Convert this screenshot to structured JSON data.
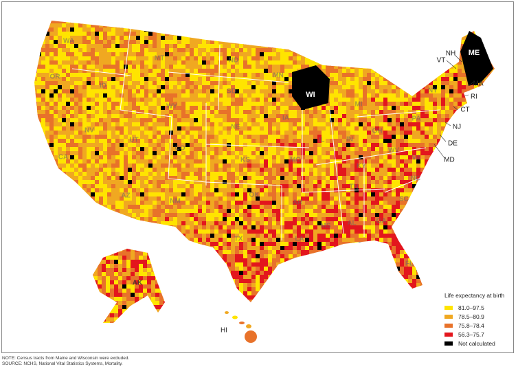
{
  "legend": {
    "title": "Life expectancy at birth",
    "items": [
      {
        "label": "81.0–97.5",
        "color": "#ffe400"
      },
      {
        "label": "78.5–80.9",
        "color": "#f0a821"
      },
      {
        "label": "75.8–78.4",
        "color": "#e8722a"
      },
      {
        "label": "56.3–75.7",
        "color": "#e3161d"
      },
      {
        "label": "Not calculated",
        "color": "#000000"
      }
    ]
  },
  "state_labels": {
    "WA": "WA",
    "OR": "OR",
    "ID": "ID",
    "MT": "MT",
    "ND": "ND",
    "MN": "MN",
    "SD": "SD",
    "WY": "WY",
    "NE": "NE",
    "NV": "NV",
    "UT": "UT",
    "CO": "CO",
    "CA": "CA",
    "AZ": "AZ",
    "NM": "NM",
    "KS": "KS",
    "OK": "OK",
    "TX": "TX",
    "IA": "IA",
    "MO": "MO",
    "IL": "IL",
    "IN": "IN",
    "OH": "OH",
    "MI": "MI",
    "KY": "KY",
    "TN": "TN",
    "AR": "AR",
    "LA": "LA",
    "MS": "MS",
    "AL": "AL",
    "GA": "GA",
    "SC": "SC",
    "NC": "NC",
    "VA": "VA",
    "WV": "WV",
    "PA": "PA",
    "NY": "NY",
    "FL": "FL",
    "WI": "WI",
    "ME": "ME",
    "NH": "NH",
    "VT": "VT",
    "MA": "MA",
    "RI": "RI",
    "CT": "CT",
    "NJ": "NJ",
    "DE": "DE",
    "MD": "MD",
    "AK": "AK",
    "HI": "HI"
  },
  "notes": {
    "note": "NOTE: Census tracts from Maine and Wisconsin were excluded.",
    "source": "SOURCE: NCHS, National Vital Statistics Systems, Mortality."
  }
}
